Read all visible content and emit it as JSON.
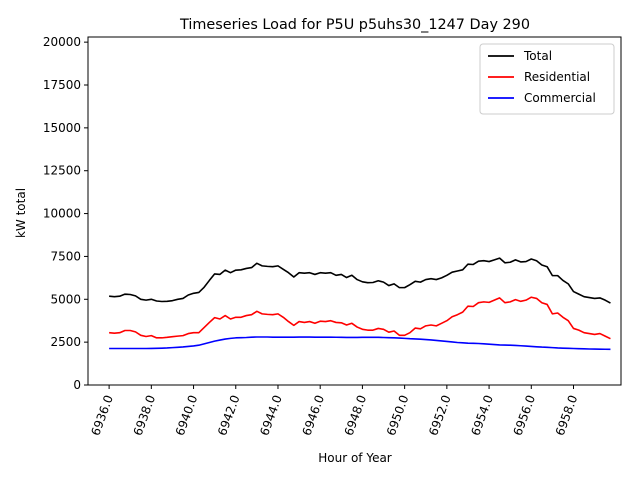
{
  "chart_data": {
    "type": "line",
    "title": "Timeseries Load for P5U p5uhs30_1247  Day 290",
    "xlabel": "Hour of Year",
    "ylabel": "kW total",
    "xlim": [
      6935.0,
      6960.25
    ],
    "ylim": [
      0,
      20300
    ],
    "xticks": [
      6936,
      6938,
      6940,
      6942,
      6944,
      6946,
      6948,
      6950,
      6952,
      6954,
      6956,
      6958
    ],
    "xtick_labels": [
      "6936.0",
      "6938.0",
      "6940.0",
      "6942.0",
      "6944.0",
      "6946.0",
      "6948.0",
      "6950.0",
      "6952.0",
      "6954.0",
      "6956.0",
      "6958.0"
    ],
    "yticks": [
      0,
      2500,
      5000,
      7500,
      10000,
      12500,
      15000,
      17500,
      20000
    ],
    "ytick_labels": [
      "0",
      "2500",
      "5000",
      "7500",
      "10000",
      "12500",
      "15000",
      "17500",
      "20000"
    ],
    "legend_position": "upper-right",
    "x_start": 6936.0,
    "x_step": 0.25,
    "series": [
      {
        "name": "Total",
        "color": "#000000",
        "values": [
          5180,
          5150,
          5180,
          5300,
          5280,
          5200,
          5000,
          4950,
          5000,
          4900,
          4870,
          4880,
          4920,
          5000,
          5050,
          5250,
          5350,
          5400,
          5700,
          6100,
          6480,
          6450,
          6700,
          6550,
          6700,
          6720,
          6800,
          6850,
          7100,
          6950,
          6920,
          6900,
          6950,
          6750,
          6550,
          6300,
          6550,
          6520,
          6550,
          6450,
          6550,
          6520,
          6550,
          6400,
          6450,
          6270,
          6400,
          6150,
          6020,
          5970,
          5980,
          6080,
          6000,
          5800,
          5900,
          5680,
          5680,
          5850,
          6050,
          6000,
          6150,
          6200,
          6150,
          6250,
          6400,
          6580,
          6650,
          6720,
          7050,
          7030,
          7220,
          7250,
          7200,
          7300,
          7400,
          7130,
          7160,
          7300,
          7180,
          7200,
          7350,
          7250,
          7000,
          6900,
          6380,
          6380,
          6100,
          5900,
          5450,
          5300,
          5150,
          5100,
          5050,
          5080,
          4950,
          4780
        ]
      },
      {
        "name": "Residential",
        "color": "#ff0000",
        "values": [
          3050,
          3020,
          3050,
          3180,
          3180,
          3100,
          2900,
          2830,
          2880,
          2750,
          2750,
          2780,
          2820,
          2850,
          2880,
          3000,
          3050,
          3050,
          3350,
          3650,
          3930,
          3850,
          4050,
          3850,
          3950,
          3950,
          4050,
          4100,
          4300,
          4150,
          4120,
          4100,
          4150,
          3950,
          3700,
          3480,
          3700,
          3650,
          3700,
          3600,
          3720,
          3700,
          3750,
          3650,
          3630,
          3500,
          3600,
          3380,
          3250,
          3200,
          3200,
          3300,
          3250,
          3080,
          3150,
          2900,
          2900,
          3050,
          3320,
          3280,
          3450,
          3500,
          3450,
          3600,
          3750,
          3980,
          4100,
          4250,
          4600,
          4580,
          4800,
          4850,
          4820,
          4950,
          5080,
          4800,
          4850,
          4980,
          4880,
          4950,
          5120,
          5050,
          4800,
          4700,
          4150,
          4200,
          3950,
          3750,
          3300,
          3200,
          3050,
          3000,
          2950,
          3000,
          2850,
          2700
        ]
      },
      {
        "name": "Commercial",
        "color": "#0000ff",
        "values": [
          2130,
          2130,
          2130,
          2130,
          2130,
          2130,
          2130,
          2130,
          2135,
          2140,
          2150,
          2160,
          2180,
          2200,
          2220,
          2250,
          2280,
          2320,
          2400,
          2480,
          2560,
          2620,
          2680,
          2720,
          2750,
          2760,
          2770,
          2790,
          2800,
          2800,
          2800,
          2790,
          2790,
          2790,
          2790,
          2790,
          2795,
          2795,
          2795,
          2790,
          2790,
          2790,
          2790,
          2785,
          2780,
          2775,
          2775,
          2775,
          2780,
          2780,
          2780,
          2780,
          2770,
          2760,
          2750,
          2740,
          2720,
          2700,
          2690,
          2670,
          2650,
          2630,
          2600,
          2570,
          2540,
          2510,
          2480,
          2460,
          2440,
          2430,
          2420,
          2400,
          2380,
          2360,
          2340,
          2330,
          2320,
          2310,
          2290,
          2270,
          2250,
          2230,
          2210,
          2200,
          2180,
          2160,
          2150,
          2140,
          2130,
          2120,
          2110,
          2100,
          2095,
          2090,
          2085,
          2080
        ]
      }
    ]
  }
}
